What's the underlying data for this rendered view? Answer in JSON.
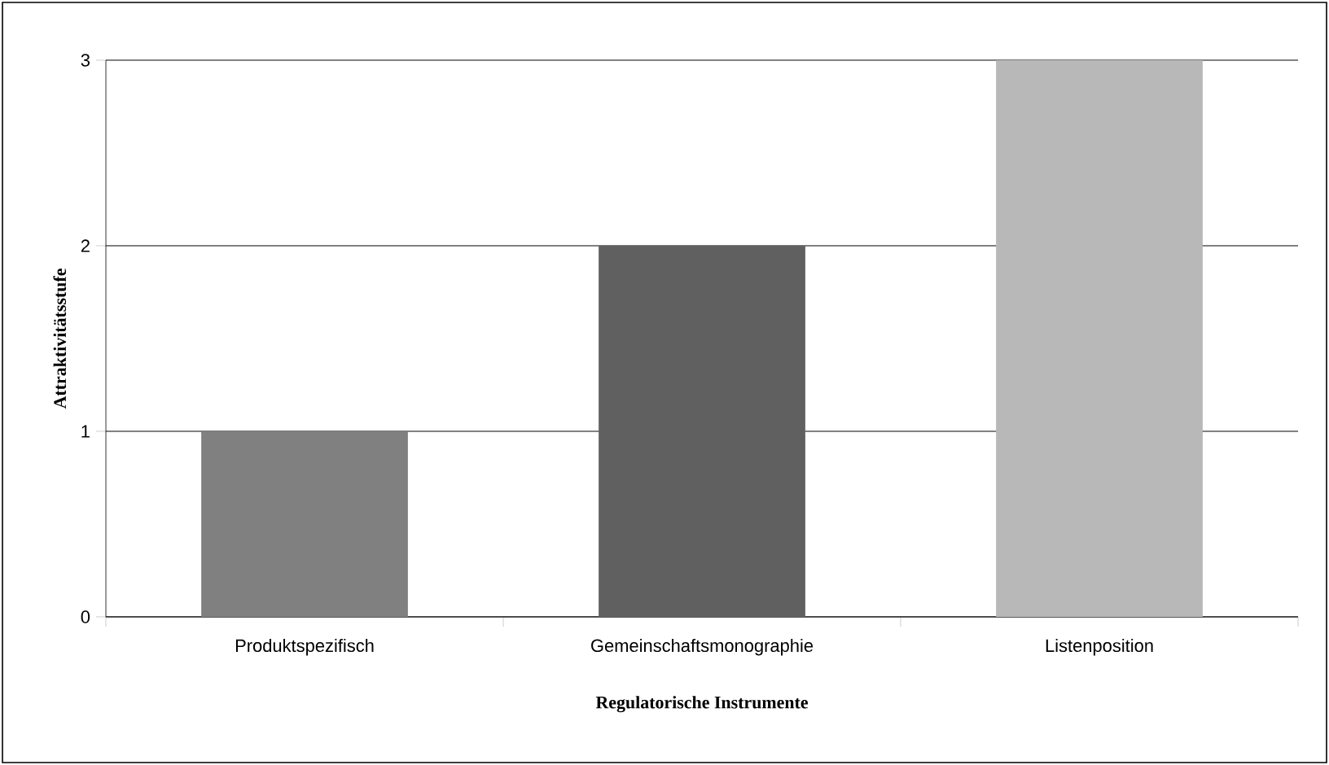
{
  "chart_data": {
    "type": "bar",
    "xlabel": "Regulatorische Instrumente",
    "ylabel": "Attraktivitätsstufe",
    "categories": [
      "Produktspezifisch",
      "Gemeinschaftsmonographie",
      "Listenposition"
    ],
    "values": [
      1,
      2,
      3
    ],
    "colors": [
      "#808080",
      "#606060",
      "#b8b8b8"
    ],
    "ylim": [
      0,
      3
    ],
    "yticks": [
      0,
      1,
      2,
      3
    ],
    "grid": "y"
  }
}
